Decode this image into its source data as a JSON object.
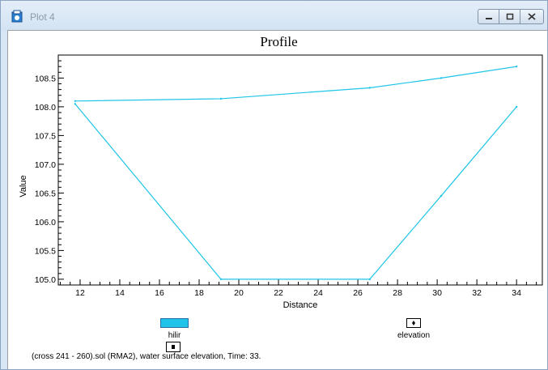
{
  "window": {
    "title": "Plot 4",
    "min_icon": "minimize-icon",
    "max_icon": "maximize-icon",
    "close_icon": "close-icon",
    "app_icon": "plot-window-icon"
  },
  "chart_data": {
    "type": "line",
    "title": "Profile",
    "xlabel": "Distance",
    "ylabel": "Value",
    "xlim": [
      10.9,
      35.3
    ],
    "ylim": [
      104.9,
      108.9
    ],
    "x_ticks": [
      "12",
      "14",
      "16",
      "18",
      "20",
      "22",
      "24",
      "26",
      "28",
      "30",
      "32",
      "34"
    ],
    "y_ticks": [
      "105.0",
      "105.5",
      "106.0",
      "106.5",
      "107.0",
      "107.5",
      "108.0",
      "108.5"
    ],
    "series": [
      {
        "name": "hilir",
        "color": "#1fc4e8",
        "x": [
          11.75,
          19.1,
          26.6,
          30.2,
          34.0
        ],
        "y": [
          108.1,
          108.14,
          108.33,
          108.5,
          108.7
        ]
      },
      {
        "name": "elevation",
        "color": "#1fc4e8",
        "x": [
          11.75,
          19.1,
          26.6,
          30.2,
          34.0
        ],
        "y": [
          108.05,
          105.0,
          105.0,
          106.45,
          108.0
        ]
      }
    ]
  },
  "legend": {
    "hilir_label": "hilir",
    "elevation_label": "elevation"
  },
  "footer": {
    "caption": "(cross 241 - 260).sol (RMA2), water surface elevation, Time: 33."
  }
}
